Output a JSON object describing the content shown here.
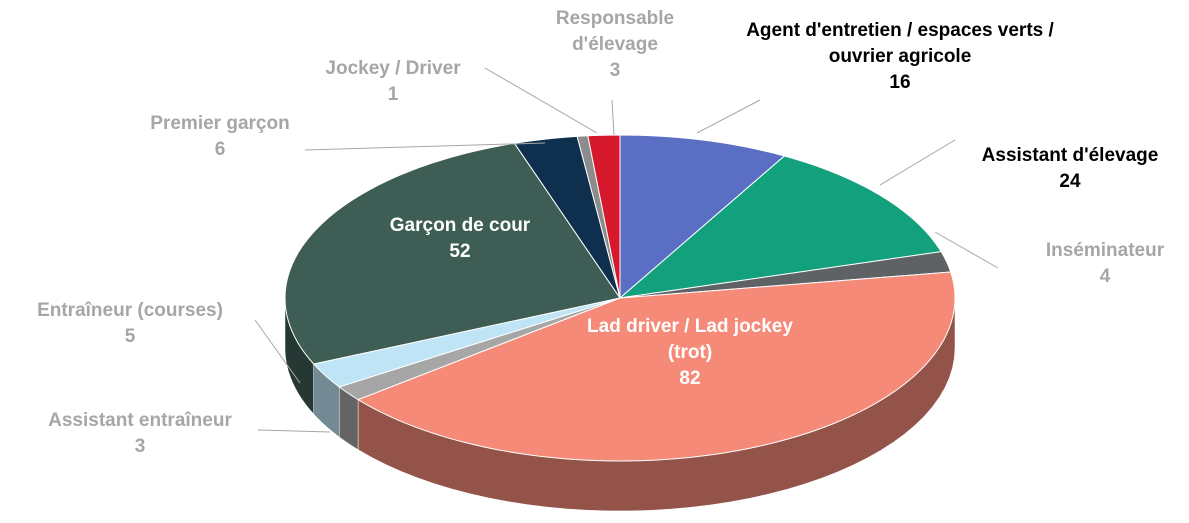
{
  "chart_data": {
    "type": "pie",
    "categories": [
      "Agent d'entretien / espaces verts / ouvrier agricole",
      "Assistant d'élevage",
      "Inséminateur",
      "Lad driver / Lad jockey (trot)",
      "Assistant entraîneur",
      "Entraîneur (courses)",
      "Garçon de cour",
      "Premier garçon",
      "Jockey / Driver",
      "Responsable d'élevage"
    ],
    "values": [
      16,
      24,
      4,
      82,
      3,
      5,
      52,
      6,
      1,
      3
    ],
    "colors": [
      "#5a6ec4",
      "#13a07d",
      "#5f6264",
      "#f58a79",
      "#a6a6a6",
      "#bfe4f6",
      "#3e5e55",
      "#0e2f4e",
      "#8c8c8c",
      "#d5182b"
    ]
  }
}
